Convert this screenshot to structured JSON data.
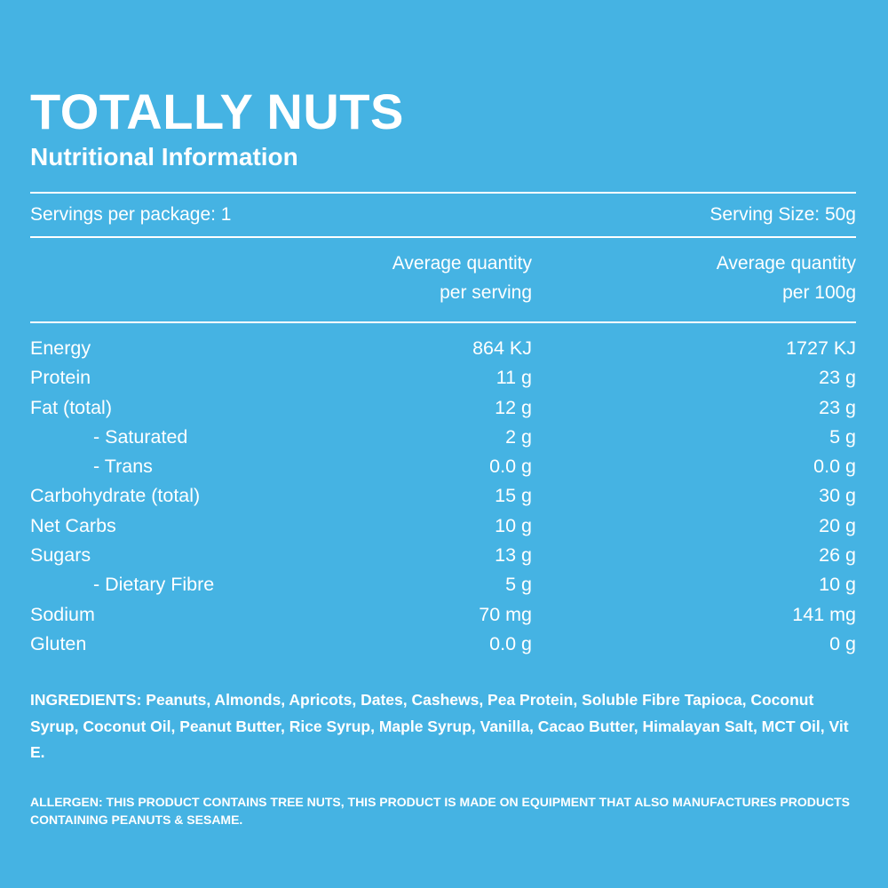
{
  "header": {
    "title": "TOTALLY NUTS",
    "subtitle": "Nutritional Information"
  },
  "servings": {
    "per_package": "Servings per package: 1",
    "serving_size": "Serving Size: 50g"
  },
  "columns": {
    "per_serving": [
      "Average quantity",
      "per serving"
    ],
    "per_100g": [
      "Average quantity",
      "per 100g"
    ]
  },
  "rows": [
    {
      "label": "Energy",
      "per_serving": "864 KJ",
      "per_100g": "1727 KJ"
    },
    {
      "label": "Protein",
      "per_serving": "11 g",
      "per_100g": "23 g"
    },
    {
      "label": "Fat (total)",
      "per_serving": "12 g",
      "per_100g": "23 g"
    },
    {
      "label": "- Saturated",
      "per_serving": "2 g",
      "per_100g": "5 g"
    },
    {
      "label": "- Trans",
      "per_serving": "0.0 g",
      "per_100g": "0.0 g"
    },
    {
      "label": "Carbohydrate (total)",
      "per_serving": "15 g",
      "per_100g": "30 g"
    },
    {
      "label": "Net Carbs",
      "per_serving": "10 g",
      "per_100g": "20 g"
    },
    {
      "label": "Sugars",
      "per_serving": "13 g",
      "per_100g": "26 g"
    },
    {
      "label": "- Dietary Fibre",
      "per_serving": "5 g",
      "per_100g": "10 g"
    },
    {
      "label": "Sodium",
      "per_serving": "70 mg",
      "per_100g": "141 mg"
    },
    {
      "label": "Gluten",
      "per_serving": "0.0 g",
      "per_100g": "0 g"
    }
  ],
  "ingredients": "INGREDIENTS: Peanuts, Almonds, Apricots, Dates, Cashews, Pea Protein, Soluble Fibre Tapioca, Coconut Syrup, Coconut Oil, Peanut Butter, Rice Syrup, Maple Syrup, Vanilla, Cacao Butter, Himalayan Salt, MCT Oil, Vit E.",
  "allergen": "ALLERGEN: THIS PRODUCT CONTAINS TREE NUTS, THIS PRODUCT IS MADE ON EQUIPMENT THAT ALSO MANUFACTURES PRODUCTS CONTAINING PEANUTS & SESAME.",
  "colors": {
    "background": "#45b3e3",
    "text": "#ffffff"
  }
}
